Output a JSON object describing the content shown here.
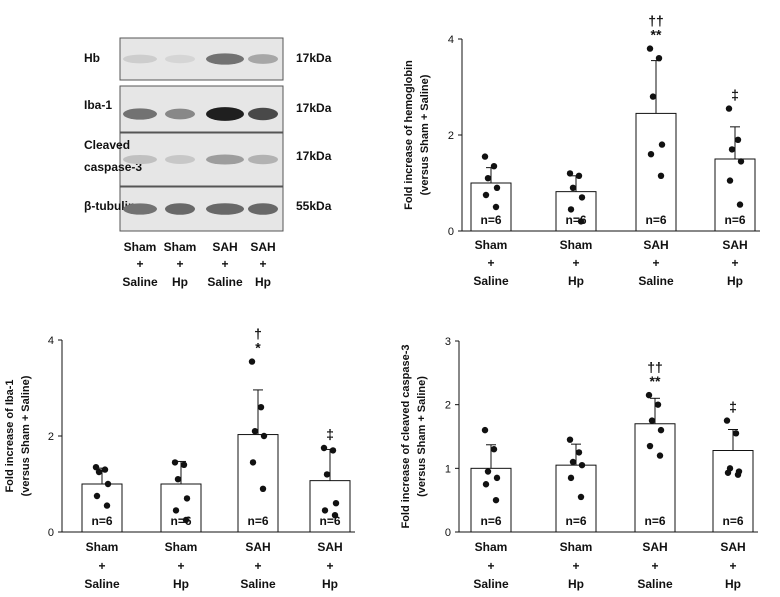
{
  "western_blot": {
    "rows": [
      {
        "label": "Hb",
        "mw": "17kDa"
      },
      {
        "label": "Iba-1",
        "mw": "17kDa"
      },
      {
        "label": "Cleaved caspase-3",
        "label_lines": [
          "Cleaved",
          "caspase-3"
        ],
        "mw": "17kDa"
      },
      {
        "label": "β-tubulin",
        "mw": "55kDa"
      }
    ],
    "lanes": [
      {
        "line1": "Sham",
        "line2": "+",
        "line3": "Saline"
      },
      {
        "line1": "Sham",
        "line2": "+",
        "line3": "Hp"
      },
      {
        "line1": "SAH",
        "line2": "+",
        "line3": "Saline"
      },
      {
        "line1": "SAH",
        "line2": "+",
        "line3": "Hp"
      }
    ],
    "band_intensity": [
      [
        0.12,
        0.08,
        0.55,
        0.3
      ],
      [
        0.55,
        0.45,
        0.95,
        0.75
      ],
      [
        0.18,
        0.15,
        0.35,
        0.25
      ],
      [
        0.55,
        0.6,
        0.6,
        0.6
      ]
    ]
  },
  "chart_data": [
    {
      "type": "bar",
      "ylabel_lines": [
        "Fold increase of hemoglobin",
        "(versus Sham + Saline)"
      ],
      "ylim": [
        0,
        4
      ],
      "yticks": [
        "0",
        "2",
        "4"
      ],
      "categories": [
        {
          "line1": "Sham",
          "line2": "+",
          "line3": "Saline"
        },
        {
          "line1": "Sham",
          "line2": "+",
          "line3": "Hp"
        },
        {
          "line1": "SAH",
          "line2": "+",
          "line3": "Saline"
        },
        {
          "line1": "SAH",
          "line2": "+",
          "line3": "Hp"
        }
      ],
      "values": [
        1.0,
        0.82,
        2.45,
        1.5
      ],
      "errors": [
        0.32,
        0.33,
        1.1,
        0.67
      ],
      "points": [
        [
          1.55,
          1.35,
          1.1,
          0.9,
          0.75,
          0.5
        ],
        [
          1.2,
          1.15,
          0.9,
          0.7,
          0.45,
          0.2
        ],
        [
          3.8,
          3.6,
          2.8,
          1.8,
          1.6,
          1.15
        ],
        [
          2.55,
          1.9,
          1.7,
          1.45,
          1.05,
          0.55
        ]
      ],
      "n_labels": [
        "n=6",
        "n=6",
        "n=6",
        "n=6"
      ],
      "annotations": [
        "",
        "",
        "††\n**",
        "‡"
      ]
    },
    {
      "type": "bar",
      "ylabel_lines": [
        "Fold increase of Iba-1",
        "(versus Sham + Saline)"
      ],
      "ylim": [
        0,
        4
      ],
      "yticks": [
        "0",
        "2",
        "4"
      ],
      "categories": [
        {
          "line1": "Sham",
          "line2": "+",
          "line3": "Saline"
        },
        {
          "line1": "Sham",
          "line2": "+",
          "line3": "Hp"
        },
        {
          "line1": "SAH",
          "line2": "+",
          "line3": "Saline"
        },
        {
          "line1": "SAH",
          "line2": "+",
          "line3": "Hp"
        }
      ],
      "values": [
        1.0,
        1.0,
        2.03,
        1.07
      ],
      "errors": [
        0.33,
        0.47,
        0.93,
        0.65
      ],
      "points": [
        [
          1.35,
          1.3,
          1.25,
          1.0,
          0.75,
          0.55
        ],
        [
          1.45,
          1.4,
          1.1,
          0.7,
          0.45,
          0.25
        ],
        [
          3.55,
          2.6,
          2.1,
          2.0,
          1.45,
          0.9
        ],
        [
          1.75,
          1.7,
          1.2,
          0.6,
          0.45,
          0.35
        ]
      ],
      "n_labels": [
        "n=6",
        "n=6",
        "n=6",
        "n=6"
      ],
      "annotations": [
        "",
        "",
        "†\n*",
        "‡"
      ]
    },
    {
      "type": "bar",
      "ylabel_lines": [
        "Fold increase of cleaved caspase-3",
        "(versus Sham + Saline)"
      ],
      "ylim": [
        0,
        3
      ],
      "yticks": [
        "0",
        "1",
        "2",
        "3"
      ],
      "categories": [
        {
          "line1": "Sham",
          "line2": "+",
          "line3": "Saline"
        },
        {
          "line1": "Sham",
          "line2": "+",
          "line3": "Hp"
        },
        {
          "line1": "SAH",
          "line2": "+",
          "line3": "Saline"
        },
        {
          "line1": "SAH",
          "line2": "+",
          "line3": "Hp"
        }
      ],
      "values": [
        1.0,
        1.05,
        1.7,
        1.28
      ],
      "errors": [
        0.37,
        0.33,
        0.4,
        0.33
      ],
      "points": [
        [
          1.6,
          1.3,
          0.95,
          0.85,
          0.75,
          0.5
        ],
        [
          1.45,
          1.25,
          1.1,
          1.05,
          0.85,
          0.55
        ],
        [
          2.15,
          2.0,
          1.75,
          1.6,
          1.35,
          1.2
        ],
        [
          1.75,
          1.55,
          1.0,
          0.95,
          0.93,
          0.9
        ]
      ],
      "n_labels": [
        "n=6",
        "n=6",
        "n=6",
        "n=6"
      ],
      "annotations": [
        "",
        "",
        "††\n**",
        "‡"
      ]
    }
  ]
}
